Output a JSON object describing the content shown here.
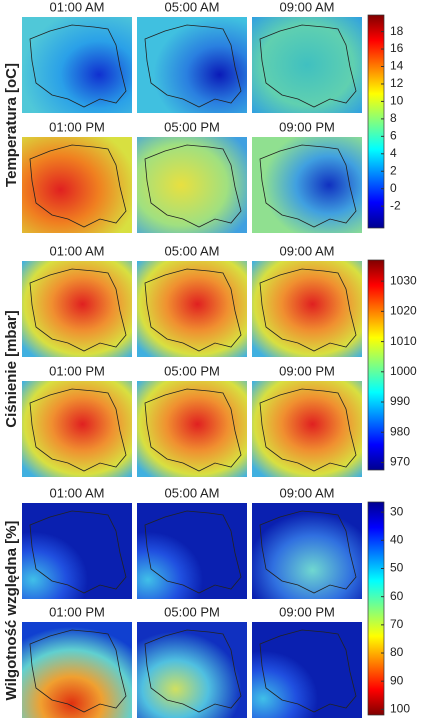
{
  "groups": [
    {
      "label": "Temperatura [oC]",
      "colorbar": {
        "lim": [
          -4.5,
          19.9
        ],
        "ticks": [
          -2,
          0,
          2,
          4,
          6,
          8,
          10,
          12,
          14,
          16,
          18
        ],
        "reversed": false
      },
      "panels": [
        [
          "01:00 AM",
          "05:00 AM",
          "09:00 AM"
        ],
        [
          "01:00 PM",
          "05:00 PM",
          "09:00 PM"
        ]
      ]
    },
    {
      "label": "Ciśnienie [mbar]",
      "colorbar": {
        "lim": [
          967.5,
          1037
        ],
        "ticks": [
          970,
          980,
          990,
          1000,
          1010,
          1020,
          1030
        ],
        "reversed": false
      },
      "panels": [
        [
          "01:00 AM",
          "05:00 AM",
          "09:00 AM"
        ],
        [
          "01:00 PM",
          "05:00 PM",
          "09:00 PM"
        ]
      ]
    },
    {
      "label": "Wilgotność względna [%]",
      "colorbar": {
        "lim": [
          26.4,
          102
        ],
        "ticks": [
          30,
          40,
          50,
          60,
          70,
          80,
          90,
          100
        ],
        "reversed": true
      },
      "panels": [
        [
          "01:00 AM",
          "05:00 AM",
          "09:00 AM"
        ],
        [
          "01:00 PM",
          "05:00 PM",
          "09:00 PM"
        ]
      ]
    }
  ]
}
